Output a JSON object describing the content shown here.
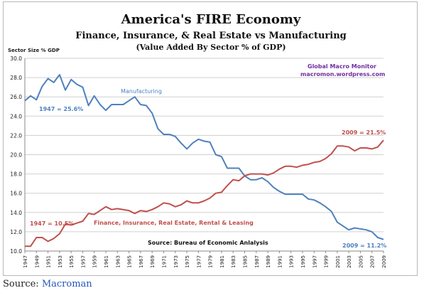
{
  "caption": {
    "prefix": "Source: ",
    "link_text": "Macroman"
  },
  "chart_data": {
    "type": "line",
    "title": "America's FIRE Economy",
    "subtitle": "Finance, Insurance, & Real Estate vs Manufacturing",
    "subtitle2": "(Value Added By Sector % of GDP)",
    "ylabel": "Sector Size % GDP",
    "ylim": [
      10.0,
      30.0
    ],
    "yticks": [
      "10.0",
      "12.0",
      "14.0",
      "16.0",
      "18.0",
      "20.0",
      "22.0",
      "24.0",
      "26.0",
      "28.0",
      "30.0"
    ],
    "xlim": [
      1947,
      2009
    ],
    "xticks": [
      "1947",
      "1949",
      "1951",
      "1953",
      "1955",
      "1957",
      "1959",
      "1961",
      "1963",
      "1965",
      "1967",
      "1969",
      "1971",
      "1973",
      "1975",
      "1977",
      "1979",
      "1981",
      "1983",
      "1985",
      "1987",
      "1989",
      "1991",
      "1993",
      "1995",
      "1997",
      "1999",
      "2001",
      "2003",
      "2005",
      "2007",
      "2009"
    ],
    "grid": true,
    "legend": "none",
    "branding": {
      "line1": "Global Macro Monitor",
      "line2": "macromon.wordpress.com"
    },
    "source_note": "Source:  Bureau of Economic Anlalysis",
    "colors": {
      "manufacturing": "#4f81bd",
      "fire": "#c0504d",
      "grid": "#d0d0d0",
      "brand": "#7030a0"
    },
    "x": [
      1947,
      1948,
      1949,
      1950,
      1951,
      1952,
      1953,
      1954,
      1955,
      1956,
      1957,
      1958,
      1959,
      1960,
      1961,
      1962,
      1963,
      1964,
      1965,
      1966,
      1967,
      1968,
      1969,
      1970,
      1971,
      1972,
      1973,
      1974,
      1975,
      1976,
      1977,
      1978,
      1979,
      1980,
      1981,
      1982,
      1983,
      1984,
      1985,
      1986,
      1987,
      1988,
      1989,
      1990,
      1991,
      1992,
      1993,
      1994,
      1995,
      1996,
      1997,
      1998,
      1999,
      2000,
      2001,
      2002,
      2003,
      2004,
      2005,
      2006,
      2007,
      2008,
      2009
    ],
    "series": [
      {
        "name": "Manufacturing",
        "color": "#4f81bd",
        "start_label": "1947 = 25.6%",
        "end_label": "2009 = 11.2%",
        "values": [
          25.6,
          26.1,
          25.7,
          27.1,
          27.9,
          27.5,
          28.3,
          26.7,
          27.8,
          27.3,
          27.0,
          25.1,
          26.1,
          25.2,
          24.6,
          25.2,
          25.2,
          25.2,
          25.6,
          26.0,
          25.2,
          25.1,
          24.3,
          22.7,
          22.1,
          22.1,
          21.9,
          21.2,
          20.6,
          21.2,
          21.6,
          21.4,
          21.3,
          20.0,
          19.8,
          18.6,
          18.6,
          18.6,
          17.8,
          17.4,
          17.4,
          17.6,
          17.2,
          16.6,
          16.2,
          15.9,
          15.9,
          15.9,
          15.9,
          15.4,
          15.3,
          15.0,
          14.6,
          14.1,
          13.0,
          12.6,
          12.2,
          12.4,
          12.3,
          12.2,
          12.0,
          11.4,
          11.2
        ]
      },
      {
        "name": "Finance, Insurance, Real Estate, Rental & Leasing",
        "color": "#c0504d",
        "start_label": "1947 = 10.5%",
        "end_label": "2009 = 21.5%",
        "values": [
          10.5,
          10.5,
          11.4,
          11.4,
          11.0,
          11.3,
          11.8,
          12.8,
          12.7,
          12.9,
          13.1,
          13.9,
          13.8,
          14.2,
          14.6,
          14.3,
          14.4,
          14.3,
          14.2,
          13.9,
          14.2,
          14.1,
          14.3,
          14.6,
          15.0,
          14.9,
          14.6,
          14.8,
          15.2,
          15.0,
          15.0,
          15.2,
          15.5,
          16.0,
          16.1,
          16.8,
          17.4,
          17.3,
          17.8,
          18.0,
          18.0,
          18.0,
          17.9,
          18.1,
          18.5,
          18.8,
          18.8,
          18.7,
          18.9,
          19.0,
          19.2,
          19.3,
          19.6,
          20.1,
          20.9,
          20.9,
          20.8,
          20.4,
          20.7,
          20.7,
          20.6,
          20.8,
          21.5
        ]
      }
    ]
  }
}
